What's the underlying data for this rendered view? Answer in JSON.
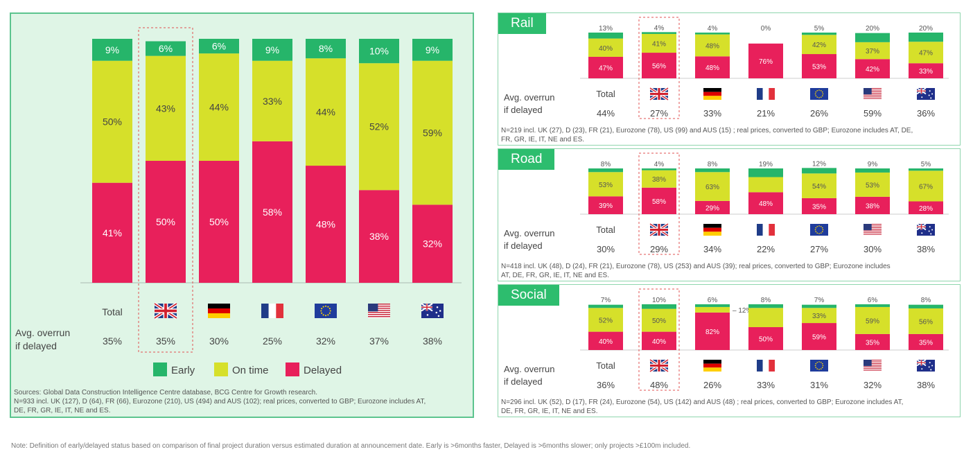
{
  "chart_data": [
    {
      "type": "bar",
      "stacked": true,
      "panel": "overall",
      "categories": [
        "Total",
        "UK",
        "Germany",
        "France",
        "Eurozone",
        "US",
        "Australia"
      ],
      "category_icons": [
        "",
        "uk-flag-icon",
        "germany-flag-icon",
        "france-flag-icon",
        "eu-flag-icon",
        "us-flag-icon",
        "australia-flag-icon"
      ],
      "first_label": "Total",
      "series": [
        {
          "name": "Delayed",
          "color": "#e8205b",
          "values": [
            41,
            50,
            50,
            58,
            48,
            38,
            32
          ]
        },
        {
          "name": "On time",
          "color": "#d6e02a",
          "values": [
            50,
            43,
            44,
            33,
            44,
            52,
            59
          ]
        },
        {
          "name": "Early",
          "color": "#26b56a",
          "values": [
            9,
            6,
            6,
            9,
            8,
            10,
            9
          ]
        }
      ],
      "overrun_label": [
        "Avg. overrun",
        "if delayed"
      ],
      "overrun": [
        "35%",
        "35%",
        "30%",
        "25%",
        "32%",
        "37%",
        "38%"
      ],
      "ylim": [
        0,
        100
      ],
      "legend": [
        "Early",
        "On time",
        "Delayed"
      ],
      "sources": "Sources: Global Data Construction Intelligence Centre database, BCG Centre for Growth research.",
      "note": [
        "N=933 incl. UK (127), D (64), FR (66), Eurozone (210), US (494) and AUS (102); real prices, converted to GBP; Eurozone includes AT,",
        "DE, FR, GR, IE, IT, NE and ES."
      ]
    },
    {
      "type": "bar",
      "stacked": true,
      "panel": "rail",
      "title": "Rail",
      "categories": [
        "Total",
        "UK",
        "Germany",
        "France",
        "Eurozone",
        "US",
        "Australia"
      ],
      "series": [
        {
          "name": "Delayed",
          "values": [
            47,
            56,
            48,
            76,
            53,
            42,
            33
          ]
        },
        {
          "name": "On time",
          "values": [
            40,
            41,
            48,
            0,
            42,
            37,
            47
          ]
        },
        {
          "name": "Early",
          "values": [
            13,
            4,
            4,
            0,
            5,
            20,
            20
          ]
        }
      ],
      "ontime_labels": [
        "40%",
        "41%",
        "48%",
        "",
        "42%",
        "37%",
        "47%"
      ],
      "overrun_label": [
        "Avg. overrun",
        "if delayed"
      ],
      "overrun": [
        "44%",
        "27%",
        "33%",
        "21%",
        "26%",
        "59%",
        "36%"
      ],
      "note": [
        "N=219 incl. UK (27), D (23), FR (21), Eurozone (78), US (99) and AUS (15) ; real prices, converted to GBP; Eurozone includes AT, DE,",
        "FR, GR, IE, IT, NE and ES."
      ]
    },
    {
      "type": "bar",
      "stacked": true,
      "panel": "road",
      "title": "Road",
      "categories": [
        "Total",
        "UK",
        "Germany",
        "France",
        "Eurozone",
        "US",
        "Australia"
      ],
      "series": [
        {
          "name": "Delayed",
          "values": [
            39,
            58,
            29,
            48,
            35,
            38,
            28
          ]
        },
        {
          "name": "On time",
          "values": [
            53,
            38,
            63,
            33,
            54,
            53,
            67
          ]
        },
        {
          "name": "Early",
          "values": [
            8,
            4,
            8,
            19,
            12,
            9,
            5
          ]
        }
      ],
      "ontime_labels": [
        "53%",
        "38%",
        "63%",
        "",
        "54%",
        "53%",
        "67%"
      ],
      "overrun_label": [
        "Avg. overrun",
        "if delayed"
      ],
      "overrun": [
        "30%",
        "29%",
        "34%",
        "22%",
        "27%",
        "30%",
        "38%"
      ],
      "note": [
        "N=418 incl. UK (48), D (24), FR (21), Eurozone (78), US (253) and AUS (39); real prices, converted to GBP; Eurozone includes",
        "AT, DE, FR, GR, IE, IT, NE and ES."
      ]
    },
    {
      "type": "bar",
      "stacked": true,
      "panel": "social",
      "title": "Social",
      "categories": [
        "Total",
        "UK",
        "Germany",
        "France",
        "Eurozone",
        "US",
        "Australia"
      ],
      "series": [
        {
          "name": "Delayed",
          "values": [
            40,
            40,
            82,
            50,
            59,
            35,
            35
          ]
        },
        {
          "name": "On time",
          "values": [
            52,
            50,
            12,
            42,
            33,
            59,
            56
          ]
        },
        {
          "name": "Early",
          "values": [
            7,
            10,
            6,
            8,
            7,
            6,
            8
          ]
        }
      ],
      "ontime_labels": [
        "52%",
        "50%",
        "12%",
        "",
        "33%",
        "59%",
        "56%"
      ],
      "overrun_label": [
        "Avg. overrun",
        "if delayed"
      ],
      "overrun": [
        "36%",
        "48%",
        "26%",
        "33%",
        "31%",
        "32%",
        "38%"
      ],
      "note": [
        "N=296 incl. UK (52), D (17), FR (24), Eurozone (54), US (142) and AUS (48) ; real prices, converted to GBP; Eurozone includes AT,",
        "DE, FR, GR, IE, IT, NE and ES."
      ]
    }
  ],
  "colors": {
    "early": "#26b56a",
    "ontime": "#d6e02a",
    "delayed": "#e8205b",
    "highlight": "#e05050"
  },
  "footnote": "Note: Definition of early/delayed status based on comparison of final project duration versus estimated duration at announcement date. Early is >6months faster, Delayed is >6months slower; only projects >£100m included."
}
